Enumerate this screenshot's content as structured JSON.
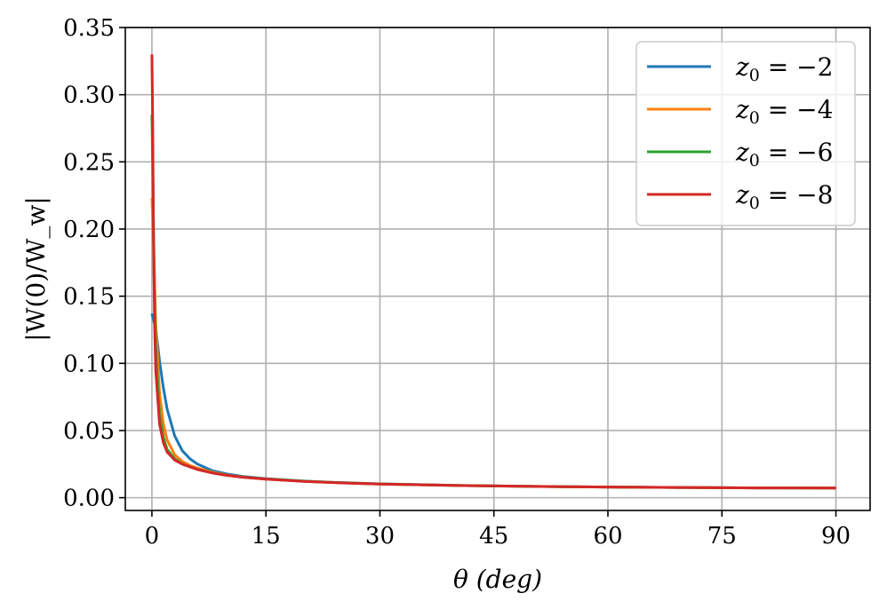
{
  "chart_data": {
    "type": "line",
    "title": "",
    "xlabel": "θ (deg)",
    "ylabel": "|W(0)/W_w|",
    "xlim": [
      -3.5,
      94.5
    ],
    "ylim": [
      -0.0095,
      0.35
    ],
    "xticks": [
      0,
      15,
      30,
      45,
      60,
      75,
      90
    ],
    "yticks": [
      0.0,
      0.05,
      0.1,
      0.15,
      0.2,
      0.25,
      0.3,
      0.35
    ],
    "xtick_labels": [
      "0",
      "15",
      "30",
      "45",
      "60",
      "75",
      "90"
    ],
    "ytick_labels": [
      "0.00",
      "0.05",
      "0.10",
      "0.15",
      "0.20",
      "0.25",
      "0.30",
      "0.35"
    ],
    "grid": true,
    "legend_position": "top-right",
    "series": [
      {
        "name": "z0 = −2",
        "label_var": "z",
        "label_sub": "0",
        "label_rest": " = −2",
        "color": "#1f77b4",
        "x": [
          0,
          0.5,
          1,
          1.5,
          2,
          3,
          4,
          5,
          6,
          8,
          10,
          12,
          15,
          20,
          25,
          30,
          40,
          50,
          60,
          70,
          80,
          90
        ],
        "y": [
          0.137,
          0.126,
          0.102,
          0.082,
          0.066,
          0.046,
          0.035,
          0.029,
          0.025,
          0.02,
          0.0175,
          0.0158,
          0.0142,
          0.0124,
          0.0112,
          0.0103,
          0.0092,
          0.0084,
          0.0079,
          0.0076,
          0.0073,
          0.0072
        ]
      },
      {
        "name": "z0 = −4",
        "label_var": "z",
        "label_sub": "0",
        "label_rest": " = −4",
        "color": "#ff7f0e",
        "x": [
          0,
          0.25,
          0.5,
          1,
          1.5,
          2,
          3,
          4,
          5,
          6,
          8,
          10,
          12,
          15,
          20,
          25,
          30,
          40,
          50,
          60,
          70,
          80,
          90
        ],
        "y": [
          0.223,
          0.185,
          0.13,
          0.078,
          0.055,
          0.043,
          0.032,
          0.027,
          0.024,
          0.022,
          0.019,
          0.0168,
          0.0154,
          0.014,
          0.0122,
          0.0111,
          0.0102,
          0.0091,
          0.0084,
          0.0079,
          0.0076,
          0.0073,
          0.0072
        ]
      },
      {
        "name": "z0 = −6",
        "label_var": "z",
        "label_sub": "0",
        "label_rest": " = −6",
        "color": "#2ca02c",
        "x": [
          0,
          0.15,
          0.3,
          0.5,
          1,
          1.5,
          2,
          3,
          4,
          5,
          6,
          8,
          10,
          12,
          15,
          20,
          25,
          30,
          40,
          50,
          60,
          70,
          80,
          90
        ],
        "y": [
          0.285,
          0.23,
          0.16,
          0.11,
          0.062,
          0.045,
          0.036,
          0.029,
          0.025,
          0.023,
          0.021,
          0.0185,
          0.0166,
          0.0153,
          0.0139,
          0.0122,
          0.0111,
          0.0102,
          0.0091,
          0.0084,
          0.0079,
          0.0076,
          0.0073,
          0.0072
        ]
      },
      {
        "name": "z0 = −8",
        "label_var": "z",
        "label_sub": "0",
        "label_rest": " = −8",
        "color": "#d62728",
        "x": [
          0,
          0.1,
          0.2,
          0.35,
          0.5,
          1,
          1.5,
          2,
          3,
          4,
          5,
          6,
          8,
          10,
          12,
          15,
          20,
          25,
          30,
          40,
          50,
          60,
          70,
          80,
          90
        ],
        "y": [
          0.33,
          0.28,
          0.2,
          0.13,
          0.095,
          0.055,
          0.041,
          0.034,
          0.028,
          0.025,
          0.023,
          0.021,
          0.0183,
          0.0165,
          0.0152,
          0.0138,
          0.0121,
          0.011,
          0.0102,
          0.0091,
          0.0084,
          0.0079,
          0.0076,
          0.0073,
          0.0072
        ]
      }
    ]
  }
}
